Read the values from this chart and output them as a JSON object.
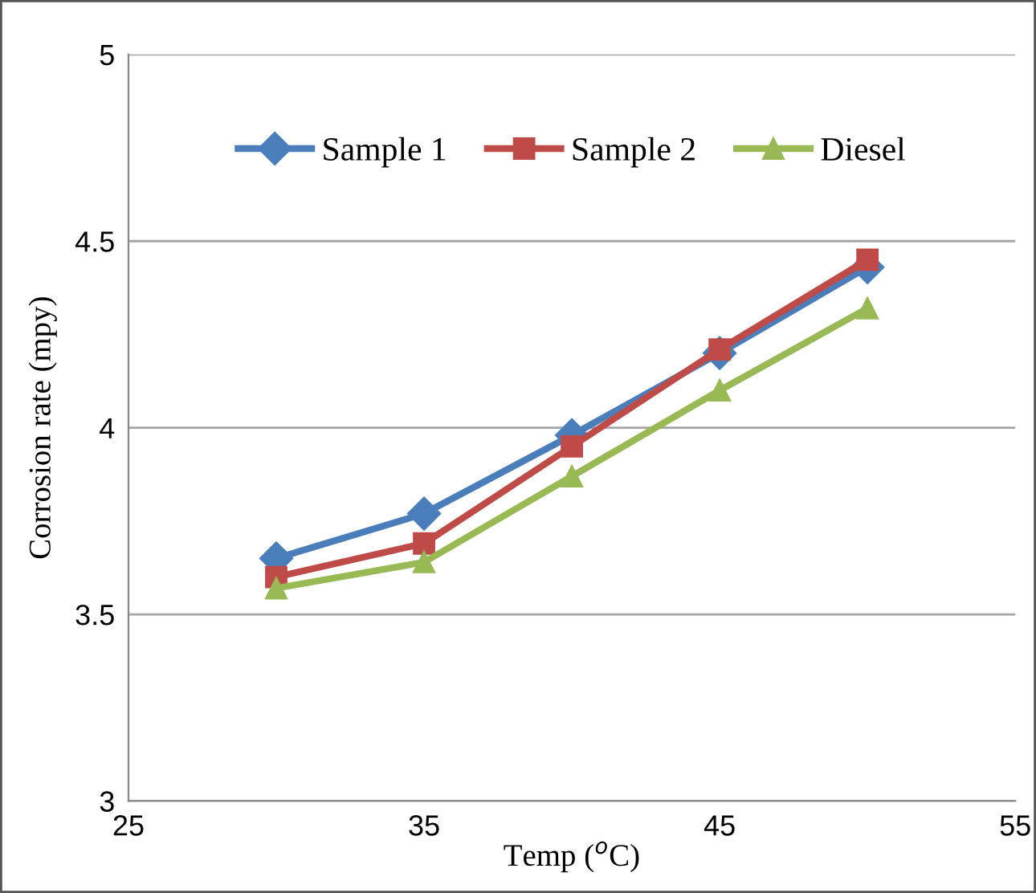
{
  "chart_data": {
    "type": "line",
    "xlabel": "Temp ($^{o}$C)",
    "ylabel": "Corrosion rate (mpy)",
    "x": [
      30,
      35,
      40,
      45,
      50
    ],
    "series": [
      {
        "name": "Sample 1",
        "color": "#4a7ebb",
        "marker": "diamond",
        "values": [
          3.65,
          3.77,
          3.98,
          4.2,
          4.43
        ]
      },
      {
        "name": "Sample 2",
        "color": "#be4b48",
        "marker": "square",
        "values": [
          3.6,
          3.69,
          3.95,
          4.21,
          4.45
        ]
      },
      {
        "name": "Diesel",
        "color": "#98b954",
        "marker": "triangle",
        "values": [
          3.57,
          3.64,
          3.87,
          4.1,
          4.32
        ]
      }
    ],
    "xlim": [
      25,
      55
    ],
    "xticks": [
      25,
      35,
      45,
      55
    ],
    "ylim": [
      3,
      5
    ],
    "yticks": [
      3,
      3.5,
      4,
      4.5,
      5
    ],
    "grid": "y",
    "legend": "top",
    "line_style": "solid"
  }
}
